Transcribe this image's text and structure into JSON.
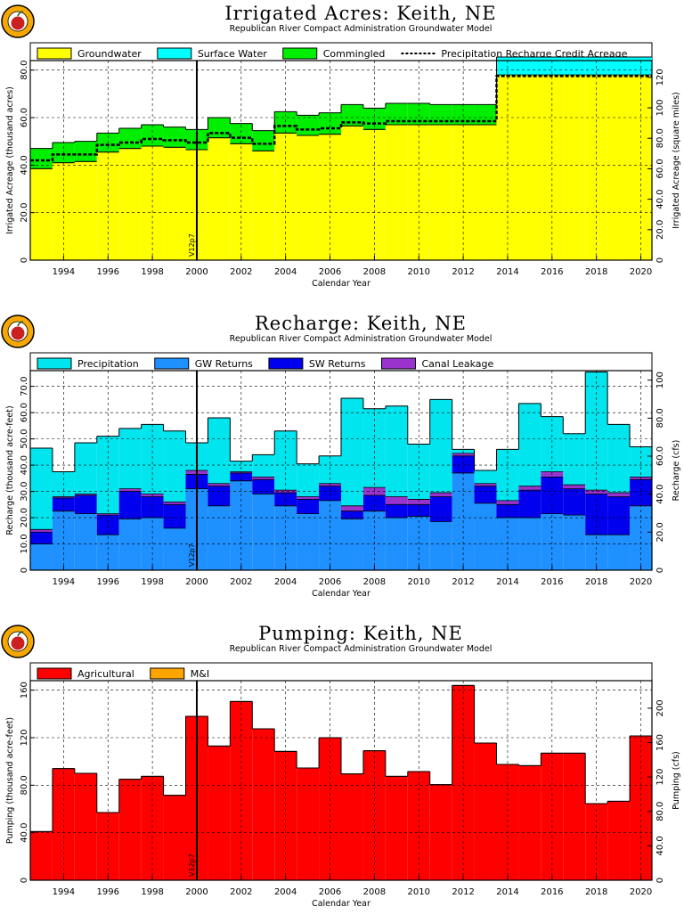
{
  "colors": {
    "groundwater": "#ffff00",
    "surface_water": "#00ffff",
    "commingled": "#00ee00",
    "precip_recharge": "#00e5ee",
    "gw_returns": "#1e90ff",
    "sw_returns": "#0000ee",
    "canal_leakage": "#9a32cd",
    "agricultural": "#ff0000",
    "mi": "#ffa500",
    "logo_red": "#cc1f1f",
    "logo_orange": "#f7a800"
  },
  "charts": [
    {
      "title": "Irrigated Acres: Keith, NE",
      "subtitle": "Republican River Compact Administration Groundwater Model",
      "xlabel": "Calendar Year",
      "ylabel": "Irrigated Acreage (thousand acres)",
      "y2label": "Irrigated Acreage (square miles)",
      "vline_label": "V12p7",
      "ticks_y": [
        "0",
        "20.0",
        "40.0",
        "60.0",
        "80.0"
      ],
      "ticks_y2": [
        "0",
        "20.0",
        "40.0",
        "60.0",
        "80.0",
        "100",
        "120"
      ],
      "ticks_x": [
        "1994",
        "1996",
        "1998",
        "2000",
        "2002",
        "2004",
        "2006",
        "2008",
        "2010",
        "2012",
        "2014",
        "2016",
        "2018",
        "2020"
      ]
    },
    {
      "title": "Recharge: Keith, NE",
      "subtitle": "Republican River Compact Administration Groundwater Model",
      "xlabel": "Calendar Year",
      "ylabel": "Recharge (thousand acre-feet)",
      "y2label": "Recharge (cfs)",
      "vline_label": "V12p7",
      "ticks_y": [
        "0",
        "10.0",
        "20.0",
        "30.0",
        "40.0",
        "50.0",
        "60.0",
        "70.0"
      ],
      "ticks_y2": [
        "0",
        "20.0",
        "40.0",
        "60.0",
        "80.0",
        "100"
      ],
      "ticks_x": [
        "1994",
        "1996",
        "1998",
        "2000",
        "2002",
        "2004",
        "2006",
        "2008",
        "2010",
        "2012",
        "2014",
        "2016",
        "2018",
        "2020"
      ]
    },
    {
      "title": "Pumping: Keith, NE",
      "subtitle": "Republican River Compact Administration Groundwater Model",
      "xlabel": "Calendar Year",
      "ylabel": "Pumping (thousand acre-feet)",
      "y2label": "Pumping (cfs)",
      "vline_label": "V12p7",
      "ticks_y": [
        "0",
        "40.0",
        "80.0",
        "120",
        "160"
      ],
      "ticks_y2": [
        "0",
        "40.0",
        "80.0",
        "120",
        "160",
        "200"
      ],
      "ticks_x": [
        "1994",
        "1996",
        "1998",
        "2000",
        "2002",
        "2004",
        "2006",
        "2008",
        "2010",
        "2012",
        "2014",
        "2016",
        "2018",
        "2020"
      ]
    }
  ],
  "chart_data": [
    {
      "type": "area",
      "title": "Irrigated Acres: Keith, NE",
      "subtitle": "Republican River Compact Administration Groundwater Model",
      "xlabel": "Calendar Year",
      "ylabel": "Irrigated Acreage (thousand acres)",
      "y2label": "Irrigated Acreage (square miles)",
      "xlim": [
        1993,
        2021
      ],
      "ylim": [
        0,
        84
      ],
      "y2lim": [
        0,
        131
      ],
      "vline": {
        "x": 2000.5,
        "label": "V12p7"
      },
      "grid": true,
      "legend": "top",
      "x": [
        1993,
        1994,
        1995,
        1996,
        1997,
        1998,
        1999,
        2000,
        2001,
        2002,
        2003,
        2004,
        2005,
        2006,
        2007,
        2008,
        2009,
        2010,
        2011,
        2012,
        2013,
        2014,
        2015,
        2016,
        2017,
        2018,
        2019,
        2020
      ],
      "series": [
        {
          "name": "Groundwater",
          "values": [
            38.5,
            41.0,
            41.5,
            45.5,
            47.0,
            48.0,
            47.5,
            46.5,
            51.5,
            49.0,
            46.0,
            53.5,
            52.5,
            53.0,
            56.5,
            55.0,
            57.0,
            57.0,
            57.0,
            57.0,
            57.0,
            78.0,
            78.0,
            78.0,
            78.0,
            78.0,
            78.0,
            78.0
          ]
        },
        {
          "name": "Surface Water",
          "values": [
            0,
            0,
            0,
            0,
            0,
            0,
            0,
            0,
            0,
            0,
            0,
            0,
            0,
            0,
            0,
            0,
            0,
            0,
            0,
            0,
            0,
            7.5,
            7.5,
            7.5,
            7.5,
            7.5,
            7.5,
            7.5
          ]
        },
        {
          "name": "Commingled",
          "values": [
            8.5,
            8.5,
            8.5,
            8.0,
            8.5,
            9.0,
            8.5,
            8.5,
            8.5,
            8.5,
            8.5,
            9.0,
            8.5,
            9.0,
            9.0,
            9.0,
            9.0,
            9.0,
            8.5,
            8.5,
            8.5,
            0,
            0,
            0,
            0,
            0,
            0,
            0
          ]
        },
        {
          "name": "Precipitation Recharge Credit Acreage",
          "values": [
            42.0,
            44.5,
            44.5,
            48.5,
            49.5,
            51.0,
            50.5,
            49.5,
            53.5,
            51.5,
            49.0,
            56.5,
            55.0,
            55.5,
            58.0,
            57.5,
            58.5,
            58.5,
            58.5,
            58.5,
            58.5,
            77.5,
            77.5,
            77.5,
            77.5,
            77.5,
            77.5,
            77.5
          ]
        }
      ]
    },
    {
      "type": "bar",
      "title": "Recharge: Keith, NE",
      "subtitle": "Republican River Compact Administration Groundwater Model",
      "xlabel": "Calendar Year",
      "ylabel": "Recharge (thousand acre-feet)",
      "y2label": "Recharge (cfs)",
      "xlim": [
        1993,
        2021
      ],
      "ylim": [
        0,
        76
      ],
      "y2lim": [
        0,
        105
      ],
      "vline": {
        "x": 2000.5,
        "label": "V12p7"
      },
      "grid": true,
      "legend": "top",
      "x": [
        1993,
        1994,
        1995,
        1996,
        1997,
        1998,
        1999,
        2000,
        2001,
        2002,
        2003,
        2004,
        2005,
        2006,
        2007,
        2008,
        2009,
        2010,
        2011,
        2012,
        2013,
        2014,
        2015,
        2016,
        2017,
        2018,
        2019,
        2020
      ],
      "series": [
        {
          "name": "Precipitation",
          "values": [
            31.0,
            9.5,
            19.5,
            29.5,
            23.0,
            26.5,
            27.0,
            10.5,
            25.0,
            4.0,
            8.5,
            22.5,
            12.5,
            10.5,
            41.0,
            30.0,
            34.5,
            21.0,
            35.5,
            1.5,
            5.0,
            19.5,
            31.5,
            21.0,
            19.5,
            45.0,
            26.0,
            11.5
          ]
        },
        {
          "name": "GW Returns",
          "values": [
            10.0,
            22.5,
            21.5,
            13.5,
            19.5,
            20.0,
            16.0,
            31.0,
            24.5,
            34.0,
            29.0,
            24.5,
            21.5,
            26.5,
            19.5,
            22.5,
            20.0,
            20.5,
            18.5,
            37.0,
            25.5,
            20.0,
            20.0,
            21.5,
            21.0,
            13.5,
            13.5,
            24.5
          ]
        },
        {
          "name": "SW Returns",
          "values": [
            4.5,
            5.0,
            7.0,
            7.5,
            10.5,
            8.0,
            9.0,
            5.5,
            7.5,
            3.0,
            5.5,
            5.0,
            5.5,
            5.5,
            3.0,
            6.0,
            5.0,
            4.5,
            9.5,
            6.5,
            6.5,
            5.0,
            10.5,
            14.0,
            10.0,
            15.5,
            14.5,
            10.0
          ]
        },
        {
          "name": "Canal Leakage",
          "values": [
            1.0,
            0.5,
            0.5,
            0.5,
            1.0,
            1.0,
            1.0,
            1.5,
            1.0,
            0.5,
            1.0,
            1.0,
            1.0,
            1.0,
            2.0,
            3.0,
            3.0,
            2.0,
            1.5,
            1.0,
            1.0,
            1.5,
            1.5,
            2.0,
            1.5,
            1.5,
            1.5,
            1.0
          ]
        }
      ]
    },
    {
      "type": "bar",
      "title": "Pumping: Keith, NE",
      "subtitle": "Republican River Compact Administration Groundwater Model",
      "xlabel": "Calendar Year",
      "ylabel": "Pumping (thousand acre-feet)",
      "y2label": "Pumping (cfs)",
      "xlim": [
        1993,
        2021
      ],
      "ylim": [
        0,
        168
      ],
      "y2lim": [
        0,
        232
      ],
      "vline": {
        "x": 2000.5,
        "label": "V12p7"
      },
      "grid": true,
      "legend": "top",
      "x": [
        1993,
        1994,
        1995,
        1996,
        1997,
        1998,
        1999,
        2000,
        2001,
        2002,
        2003,
        2004,
        2005,
        2006,
        2007,
        2008,
        2009,
        2010,
        2011,
        2012,
        2013,
        2014,
        2015,
        2016,
        2017,
        2018,
        2019,
        2020
      ],
      "series": [
        {
          "name": "Agricultural",
          "values": [
            41.0,
            94.0,
            90.0,
            57.0,
            85.0,
            87.5,
            71.5,
            138.0,
            113.0,
            150.5,
            127.5,
            108.5,
            94.5,
            120.0,
            89.5,
            109.0,
            87.5,
            91.5,
            80.5,
            164.0,
            115.5,
            97.5,
            96.5,
            107.0,
            107.0,
            64.5,
            66.5,
            121.5
          ]
        },
        {
          "name": "M&I",
          "values": [
            0,
            0,
            0,
            0,
            0,
            0,
            0,
            0,
            0,
            0,
            0,
            0,
            0,
            0,
            0,
            0,
            0,
            0,
            0,
            0,
            0,
            0,
            0,
            0,
            0,
            0,
            0,
            0
          ]
        }
      ]
    }
  ]
}
